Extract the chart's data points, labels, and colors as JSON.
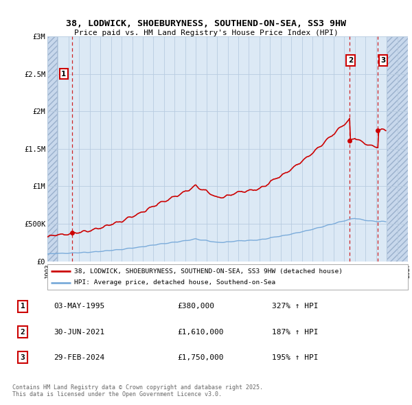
{
  "title_line1": "38, LODWICK, SHOEBURYNESS, SOUTHEND-ON-SEA, SS3 9HW",
  "title_line2": "Price paid vs. HM Land Registry's House Price Index (HPI)",
  "ylabel_ticks": [
    "£0",
    "£500K",
    "£1M",
    "£1.5M",
    "£2M",
    "£2.5M",
    "£3M"
  ],
  "ytick_values": [
    0,
    500000,
    1000000,
    1500000,
    2000000,
    2500000,
    3000000
  ],
  "ylim": [
    0,
    3000000
  ],
  "xlim_start": 1993,
  "xlim_end": 2027,
  "xtick_years": [
    1993,
    1994,
    1995,
    1996,
    1997,
    1998,
    1999,
    2000,
    2001,
    2002,
    2003,
    2004,
    2005,
    2006,
    2007,
    2008,
    2009,
    2010,
    2011,
    2012,
    2013,
    2014,
    2015,
    2016,
    2017,
    2018,
    2019,
    2020,
    2021,
    2022,
    2023,
    2024,
    2025,
    2026,
    2027
  ],
  "background_color": "#ffffff",
  "chart_bg_color": "#dce9f5",
  "hatch_region_color": "#c8d8ec",
  "grid_color": "#b8cce0",
  "red_line_color": "#cc0000",
  "blue_line_color": "#7aabda",
  "dashed_line_color": "#cc0000",
  "sale_points": [
    {
      "year": 1995.34,
      "price": 380000,
      "label": "1"
    },
    {
      "year": 2021.5,
      "price": 1610000,
      "label": "2"
    },
    {
      "year": 2024.17,
      "price": 1750000,
      "label": "3"
    }
  ],
  "legend_entries": [
    {
      "color": "#cc0000",
      "label": "38, LODWICK, SHOEBURYNESS, SOUTHEND-ON-SEA, SS3 9HW (detached house)"
    },
    {
      "color": "#7aabda",
      "label": "HPI: Average price, detached house, Southend-on-Sea"
    }
  ],
  "table_rows": [
    {
      "num": "1",
      "date": "03-MAY-1995",
      "price": "£380,000",
      "hpi": "327% ↑ HPI"
    },
    {
      "num": "2",
      "date": "30-JUN-2021",
      "price": "£1,610,000",
      "hpi": "187% ↑ HPI"
    },
    {
      "num": "3",
      "date": "29-FEB-2024",
      "price": "£1,750,000",
      "hpi": "195% ↑ HPI"
    }
  ],
  "footer_text": "Contains HM Land Registry data © Crown copyright and database right 2025.\nThis data is licensed under the Open Government Licence v3.0."
}
